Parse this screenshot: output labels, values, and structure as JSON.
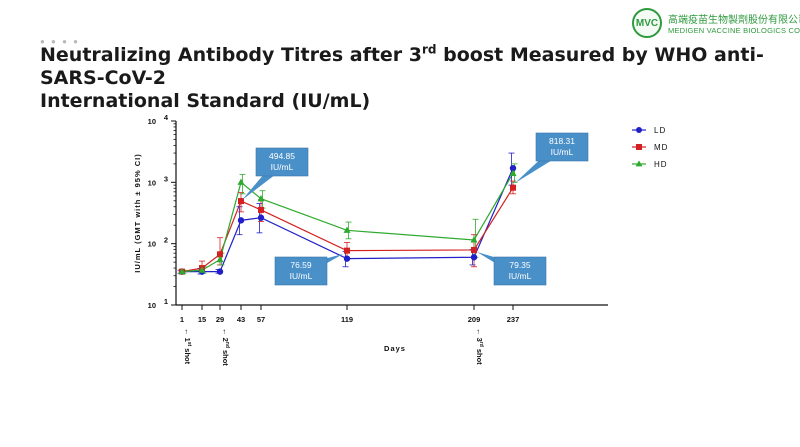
{
  "logo": {
    "mark": "MVC",
    "name_cn": "高端疫苗生物製劑股份有限公司",
    "name_en": "MEDIGEN VACCINE BIOLOGICS CO"
  },
  "title": {
    "line1_pre": "Neutralizing Antibody Titres after 3",
    "line1_sup": "rd",
    "line1_post": " boost Measured by WHO anti-SARS-CoV-2",
    "line2": "International Standard (IU/mL)"
  },
  "chart_data": {
    "type": "line",
    "xlabel": "Days",
    "ylabel": "IU/mL (GMT with ± 95% CI)",
    "y_scale": "log",
    "ylim": [
      10,
      10000
    ],
    "y_ticks": [
      {
        "value": 10,
        "base": "10",
        "exp": "1"
      },
      {
        "value": 100,
        "base": "10",
        "exp": "2"
      },
      {
        "value": 1000,
        "base": "10",
        "exp": "3"
      },
      {
        "value": 10000,
        "base": "10",
        "exp": "4"
      }
    ],
    "x_ticks": [
      1,
      15,
      29,
      43,
      57,
      119,
      209,
      237
    ],
    "legend_position": "top-right",
    "series": [
      {
        "name": "LD",
        "color": "#2020c8",
        "marker": "circle",
        "points": [
          {
            "x": 1,
            "y": 35,
            "lo": 33,
            "hi": 37
          },
          {
            "x": 15,
            "y": 35,
            "lo": 32,
            "hi": 39
          },
          {
            "x": 29,
            "y": 35,
            "lo": 33,
            "hi": 38
          },
          {
            "x": 43,
            "y": 240,
            "lo": 140,
            "hi": 400
          },
          {
            "x": 57,
            "y": 265,
            "lo": 150,
            "hi": 450
          },
          {
            "x": 119,
            "y": 57,
            "lo": 42,
            "hi": 75
          },
          {
            "x": 209,
            "y": 60,
            "lo": 45,
            "hi": 80
          },
          {
            "x": 237,
            "y": 1700,
            "lo": 900,
            "hi": 3000
          }
        ]
      },
      {
        "name": "MD",
        "color": "#d42020",
        "marker": "square",
        "points": [
          {
            "x": 1,
            "y": 35,
            "lo": 33,
            "hi": 37
          },
          {
            "x": 15,
            "y": 40,
            "lo": 34,
            "hi": 52
          },
          {
            "x": 29,
            "y": 67,
            "lo": 45,
            "hi": 125
          },
          {
            "x": 43,
            "y": 495,
            "lo": 330,
            "hi": 680
          },
          {
            "x": 57,
            "y": 355,
            "lo": 230,
            "hi": 520
          },
          {
            "x": 119,
            "y": 77,
            "lo": 58,
            "hi": 105
          },
          {
            "x": 209,
            "y": 79,
            "lo": 42,
            "hi": 140
          },
          {
            "x": 237,
            "y": 818,
            "lo": 650,
            "hi": 1050
          }
        ]
      },
      {
        "name": "HD",
        "color": "#2eaa2e",
        "marker": "triangle",
        "points": [
          {
            "x": 1,
            "y": 35,
            "lo": 33,
            "hi": 37
          },
          {
            "x": 15,
            "y": 37,
            "lo": 33,
            "hi": 42
          },
          {
            "x": 29,
            "y": 55,
            "lo": 45,
            "hi": 70
          },
          {
            "x": 43,
            "y": 1000,
            "lo": 650,
            "hi": 1350
          },
          {
            "x": 57,
            "y": 540,
            "lo": 380,
            "hi": 730
          },
          {
            "x": 119,
            "y": 165,
            "lo": 120,
            "hi": 225
          },
          {
            "x": 209,
            "y": 115,
            "lo": 60,
            "hi": 250
          },
          {
            "x": 237,
            "y": 1400,
            "lo": 1000,
            "hi": 2000
          }
        ]
      }
    ],
    "callouts": [
      {
        "line1": "494.85",
        "line2": "IU/mL",
        "anchor_series": "MD",
        "anchor_x": 43
      },
      {
        "line1": "818.31",
        "line2": "IU/mL",
        "anchor_series": "MD",
        "anchor_x": 237
      },
      {
        "line1": "76.59",
        "line2": "IU/mL",
        "anchor_series": "MD",
        "anchor_x": 119
      },
      {
        "line1": "79.35",
        "line2": "IU/mL",
        "anchor_series": "MD",
        "anchor_x": 209
      }
    ],
    "shot_markers": [
      {
        "x": 1,
        "arrow": "←",
        "number": "1",
        "suffix": "st",
        "word": "shot"
      },
      {
        "x": 29,
        "arrow": "←",
        "number": "2",
        "suffix": "nd",
        "word": "shot"
      },
      {
        "x": 209,
        "arrow": "←",
        "number": "3",
        "suffix": "rd",
        "word": "shot"
      }
    ],
    "callout_color": "#4a90c8"
  }
}
